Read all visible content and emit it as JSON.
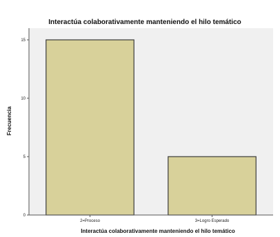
{
  "chart_data": {
    "type": "bar",
    "title": "Interactúa colaborativamente manteniendo el hilo temático",
    "xlabel": "Interactúa colaborativamente manteniendo el hilo temático",
    "ylabel": "Frecuencia",
    "categories": [
      "2=Proceso",
      "3=Logro Esperado"
    ],
    "values": [
      15,
      5
    ],
    "ylim": [
      0,
      16
    ],
    "yticks": [
      0,
      5,
      10,
      15
    ],
    "grid": false,
    "legend": "none",
    "colors": {
      "bar_fill": "#d8d19a",
      "bar_stroke": "#3a3a3a",
      "plot_background": "#f0f0f0",
      "axis": "#555555"
    }
  }
}
